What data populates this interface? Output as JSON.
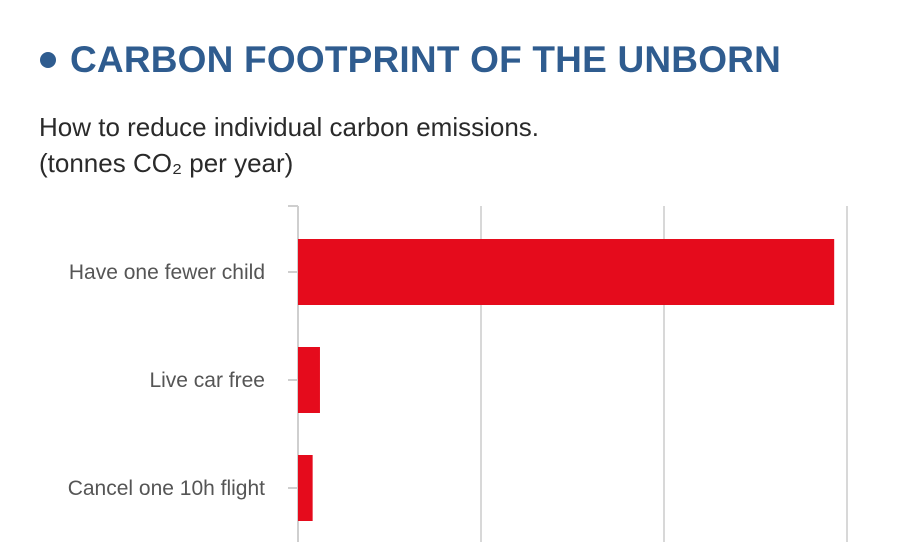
{
  "header": {
    "bullet": "●",
    "title": "CARBON FOOTPRINT OF THE UNBORN",
    "title_color": "#2f5c8f",
    "subtitle_line1": "How to reduce individual carbon emissions.",
    "subtitle_line2": "(tonnes CO₂ per year)"
  },
  "colors": {
    "bar": "#e50b1c",
    "grid": "#d8d8d8",
    "axis": "#cfcfcf"
  },
  "chart_data": {
    "type": "bar",
    "orientation": "horizontal",
    "categories": [
      "Have one fewer child",
      "Live car free",
      "Cancel one 10h flight"
    ],
    "values": [
      58.6,
      2.4,
      1.6
    ],
    "xlim": [
      0,
      60
    ],
    "gridlines": [
      0,
      20,
      40,
      60
    ],
    "grid": true,
    "x_tick_labels_shown": false,
    "title": "CARBON FOOTPRINT OF THE UNBORN",
    "subtitle": "How to reduce individual carbon emissions. (tonnes CO₂ per year)"
  }
}
